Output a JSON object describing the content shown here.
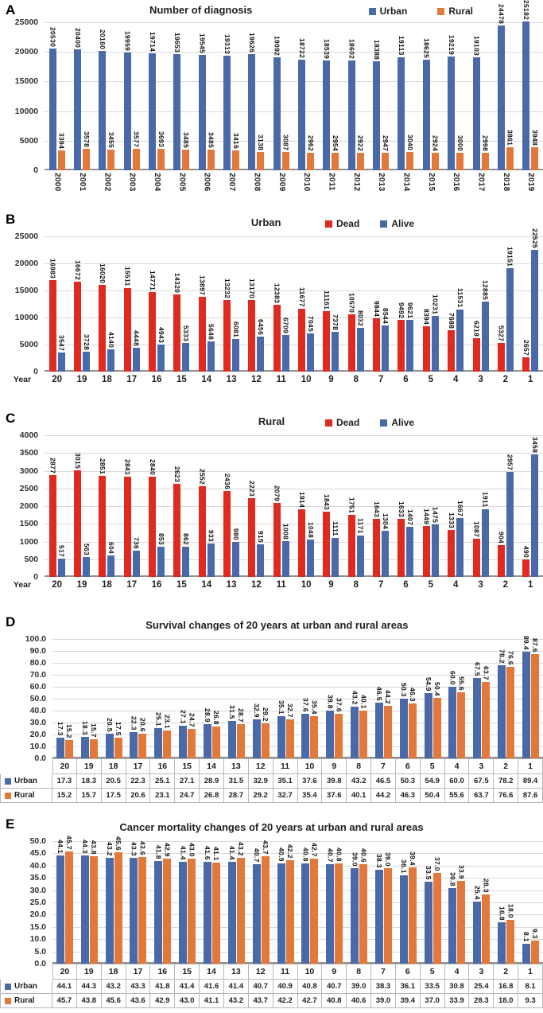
{
  "figure": {
    "panels": [
      "A",
      "B",
      "C",
      "D",
      "E"
    ]
  },
  "colors": {
    "urban_blue": "#4a69a8",
    "rural_orange": "#e2793b",
    "dead_red": "#e0291f",
    "alive_blue": "#4a69a8",
    "gridline": "#d9d9d9",
    "axis_line": "#8f8f8f"
  },
  "chart_data": [
    {
      "panel": "A",
      "type": "bar",
      "title": "Number of diagnosis",
      "legend_position": "top-right",
      "grid": true,
      "legend": [
        {
          "label": "Urban",
          "color": "#4a69a8"
        },
        {
          "label": "Rural",
          "color": "#e2793b"
        }
      ],
      "categories": [
        "2000",
        "2001",
        "2002",
        "2003",
        "2004",
        "2005",
        "2006",
        "2007",
        "2008",
        "2009",
        "2010",
        "2011",
        "2012",
        "2013",
        "2014",
        "2015",
        "2016",
        "2017",
        "2018",
        "2019"
      ],
      "series": [
        {
          "name": "Urban",
          "color": "#4a69a8",
          "values": [
            20530,
            20400,
            20160,
            19959,
            19714,
            19653,
            19545,
            19313,
            19626,
            19092,
            18722,
            18539,
            18602,
            18388,
            19113,
            18625,
            19219,
            19103,
            24478,
            25182
          ]
        },
        {
          "name": "Rural",
          "color": "#e2793b",
          "values": [
            3394,
            3578,
            3455,
            3577,
            3693,
            3485,
            3485,
            3416,
            3138,
            3087,
            2962,
            2954,
            2922,
            2947,
            3040,
            2924,
            3000,
            2998,
            3861,
            3948
          ]
        }
      ],
      "xlabel": "",
      "ylim": [
        0,
        25000
      ],
      "ytick": 5000
    },
    {
      "panel": "B",
      "type": "bar",
      "title": "Urban",
      "legend_position": "top-right",
      "grid": true,
      "legend": [
        {
          "label": "Dead",
          "color": "#e0291f"
        },
        {
          "label": "Alive",
          "color": "#4a69a8"
        }
      ],
      "categories": [
        "20",
        "19",
        "18",
        "17",
        "16",
        "15",
        "14",
        "13",
        "12",
        "11",
        "10",
        "9",
        "8",
        "7",
        "6",
        "5",
        "4",
        "3",
        "2",
        "1"
      ],
      "series": [
        {
          "name": "Dead",
          "color": "#e0291f",
          "values": [
            16983,
            16672,
            16020,
            15511,
            14771,
            14320,
            13897,
            13232,
            13170,
            12383,
            11677,
            11161,
            10570,
            9844,
            9492,
            8394,
            7688,
            6218,
            5327,
            2657
          ]
        },
        {
          "name": "Alive",
          "color": "#4a69a8",
          "values": [
            3547,
            3728,
            4140,
            4448,
            4943,
            5333,
            5648,
            6081,
            6456,
            6709,
            7045,
            7378,
            8032,
            8544,
            9621,
            10231,
            11531,
            12885,
            19151,
            22525
          ]
        }
      ],
      "xlabel": "Year",
      "ylim": [
        0,
        25000
      ],
      "ytick": 5000
    },
    {
      "panel": "C",
      "type": "bar",
      "title": "Rural",
      "legend_position": "top-right",
      "grid": true,
      "legend": [
        {
          "label": "Dead",
          "color": "#e0291f"
        },
        {
          "label": "Alive",
          "color": "#4a69a8"
        }
      ],
      "categories": [
        "20",
        "19",
        "18",
        "17",
        "16",
        "15",
        "14",
        "13",
        "12",
        "11",
        "10",
        "9",
        "8",
        "7",
        "6",
        "5",
        "4",
        "3",
        "2",
        "1"
      ],
      "series": [
        {
          "name": "Dead",
          "color": "#e0291f",
          "values": [
            2877,
            3015,
            2851,
            2841,
            2840,
            2623,
            2552,
            2436,
            2223,
            2079,
            1914,
            1843,
            1751,
            1643,
            1633,
            1449,
            1333,
            1087,
            904,
            490
          ]
        },
        {
          "name": "Alive",
          "color": "#4a69a8",
          "values": [
            517,
            563,
            604,
            736,
            853,
            862,
            933,
            980,
            915,
            1008,
            1048,
            1111,
            1171,
            1304,
            1407,
            1475,
            1667,
            1911,
            2957,
            3458
          ]
        }
      ],
      "xlabel": "Year",
      "ylim": [
        0,
        4000
      ],
      "ytick": 500
    },
    {
      "panel": "D",
      "type": "bar",
      "title": "Survival changes of 20 years at urban and rural areas",
      "grid": true,
      "legend": [],
      "categories": [
        "20",
        "19",
        "18",
        "17",
        "16",
        "15",
        "14",
        "13",
        "12",
        "11",
        "10",
        "9",
        "8",
        "7",
        "6",
        "5",
        "4",
        "3",
        "2",
        "1"
      ],
      "series": [
        {
          "name": "Urban",
          "color": "#4a69a8",
          "values": [
            17.3,
            18.3,
            20.5,
            22.3,
            25.1,
            27.1,
            28.9,
            31.5,
            32.9,
            35.1,
            37.6,
            39.8,
            43.2,
            46.5,
            50.3,
            54.9,
            60.0,
            67.5,
            78.2,
            89.4
          ]
        },
        {
          "name": "Rural",
          "color": "#e2793b",
          "values": [
            15.2,
            15.7,
            17.5,
            20.6,
            23.1,
            24.7,
            26.8,
            28.7,
            29.2,
            32.7,
            35.4,
            37.6,
            40.1,
            44.2,
            46.3,
            50.4,
            55.6,
            63.7,
            76.6,
            87.6
          ]
        }
      ],
      "table": {
        "row_labels": [
          "Urban",
          "Rural"
        ]
      },
      "ylim": [
        0,
        100
      ],
      "ytick": 10
    },
    {
      "panel": "E",
      "type": "bar",
      "title": "Cancer mortality changes of 20 years at urban and rural areas",
      "grid": true,
      "legend": [],
      "categories": [
        "20",
        "19",
        "18",
        "17",
        "16",
        "15",
        "14",
        "13",
        "12",
        "11",
        "10",
        "9",
        "8",
        "7",
        "6",
        "5",
        "4",
        "3",
        "2",
        "1"
      ],
      "series": [
        {
          "name": "Urban",
          "color": "#4a69a8",
          "values": [
            44.1,
            44.3,
            43.2,
            43.3,
            41.8,
            41.4,
            41.6,
            41.4,
            40.7,
            40.9,
            40.8,
            40.7,
            39.0,
            38.3,
            36.1,
            33.5,
            30.8,
            25.4,
            16.8,
            8.1
          ]
        },
        {
          "name": "Rural",
          "color": "#e2793b",
          "values": [
            45.7,
            43.8,
            45.6,
            43.6,
            42.9,
            43.0,
            41.1,
            43.2,
            43.7,
            42.2,
            42.7,
            40.8,
            40.6,
            39.0,
            39.4,
            37.0,
            33.9,
            28.3,
            18.0,
            9.3
          ]
        }
      ],
      "table": {
        "row_labels": [
          "Urban",
          "Rural"
        ]
      },
      "ylim": [
        0,
        50
      ],
      "ytick": 5
    }
  ]
}
